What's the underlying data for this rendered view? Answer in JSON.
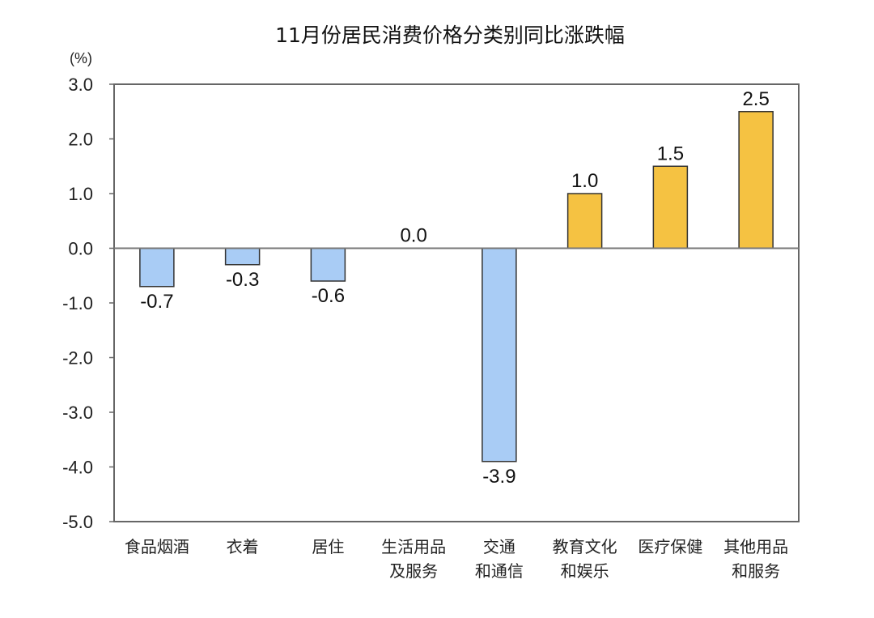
{
  "chart_data": {
    "type": "bar",
    "title": "11月份居民消费价格分类别同比涨跌幅",
    "ylabel": "(%)",
    "xlabel": "",
    "ylim": [
      -5.0,
      3.0
    ],
    "yticks": [
      "3.0",
      "2.0",
      "1.0",
      "0.0",
      "-1.0",
      "-2.0",
      "-3.0",
      "-4.0",
      "-5.0"
    ],
    "categories": [
      [
        "食品烟酒"
      ],
      [
        "衣着"
      ],
      [
        "居住"
      ],
      [
        "生活用品",
        "及服务"
      ],
      [
        "交通",
        "和通信"
      ],
      [
        "教育文化",
        "和娱乐"
      ],
      [
        "医疗保健"
      ],
      [
        "其他用品",
        "和服务"
      ]
    ],
    "values": [
      -0.7,
      -0.3,
      -0.6,
      0.0,
      -3.9,
      1.0,
      1.5,
      2.5
    ],
    "data_labels": [
      "-0.7",
      "-0.3",
      "-0.6",
      "0.0",
      "-3.9",
      "1.0",
      "1.5",
      "2.5"
    ],
    "colors": {
      "negative": "#a9ccf5",
      "positive": "#f5c242",
      "bar_border": "#333333",
      "axis": "#666666",
      "zero_line": "#777777"
    },
    "grid": false,
    "legend": "none"
  }
}
